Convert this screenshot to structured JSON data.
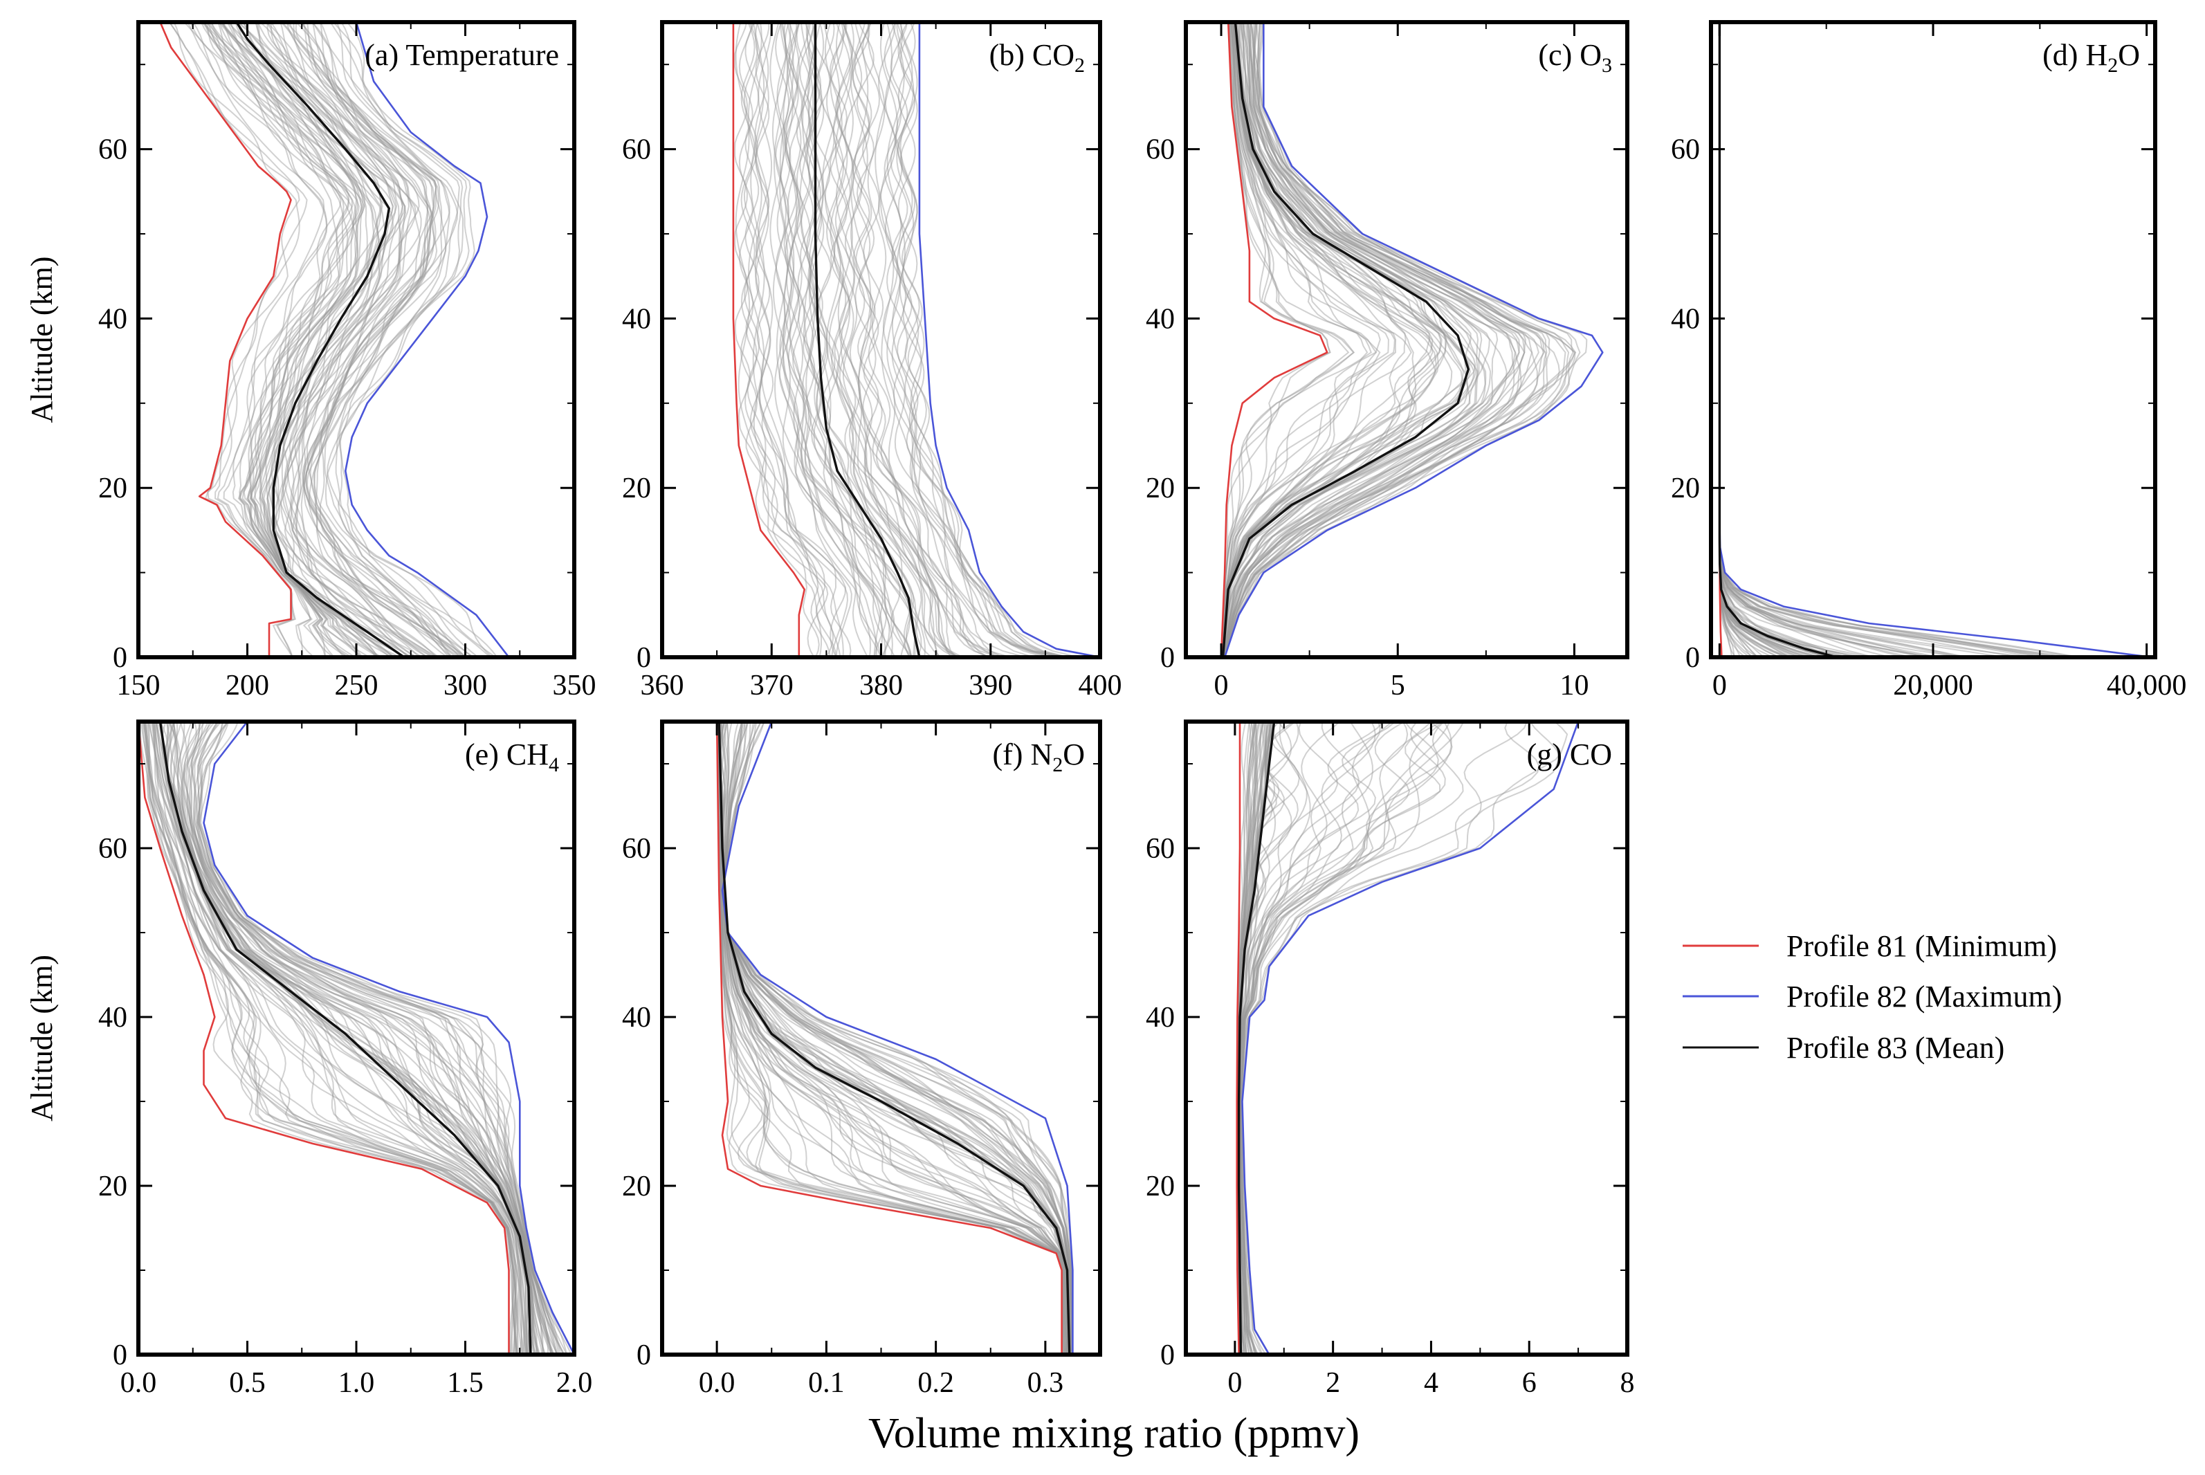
{
  "figure": {
    "xlabel": "Volume mixing ratio (ppmv)",
    "ylabel": "Altitude (km)"
  },
  "legend": {
    "items": [
      {
        "label": "Profile 81 (Minimum)",
        "color": "#e03c3c"
      },
      {
        "label": "Profile 82 (Maximum)",
        "color": "#4a55d8"
      },
      {
        "label": "Profile 83 (Mean)",
        "color": "#111111"
      }
    ]
  },
  "colors": {
    "ensemble": "#9a9a9a",
    "min": "#e03c3c",
    "max": "#4a55d8",
    "mean": "#111111"
  },
  "chart_data": [
    {
      "type": "line",
      "id": "temperature",
      "title": "(a) Temperature",
      "xlim": [
        150,
        350
      ],
      "ylim": [
        0,
        75
      ],
      "xticks": [
        150,
        200,
        250,
        300,
        350
      ],
      "xticklabels": [
        "150",
        "200",
        "250",
        "300",
        "350"
      ],
      "yticks": [
        0,
        20,
        40,
        60
      ],
      "yticklabels": [
        "0",
        "20",
        "40",
        "60"
      ],
      "ylabel": "Altitude (km)",
      "series": [
        {
          "name": "Profile 81 (Minimum)",
          "role": "min",
          "x": [
            210,
            210,
            220,
            220,
            207,
            190,
            186,
            178,
            183,
            188,
            190,
            192,
            200,
            212,
            215,
            220,
            218,
            214,
            205,
            185,
            165,
            160
          ],
          "y": [
            0,
            4,
            4.5,
            8,
            12,
            16,
            18,
            19,
            20,
            25,
            30,
            35,
            40,
            45,
            50,
            54,
            55,
            56,
            58,
            65,
            72,
            75
          ]
        },
        {
          "name": "Profile 82 (Maximum)",
          "role": "max",
          "x": [
            320,
            305,
            278,
            265,
            255,
            248,
            245,
            248,
            255,
            270,
            285,
            300,
            306,
            310,
            307,
            295,
            275,
            258,
            250
          ],
          "y": [
            0,
            5,
            10,
            12,
            15,
            18,
            22,
            26,
            30,
            35,
            40,
            45,
            48,
            52,
            56,
            58,
            62,
            68,
            75
          ]
        },
        {
          "name": "Profile 83 (Mean)",
          "role": "mean",
          "x": [
            272,
            255,
            232,
            218,
            212,
            212,
            215,
            222,
            232,
            243,
            255,
            263,
            265,
            258,
            245,
            228,
            210,
            200,
            195
          ],
          "y": [
            0,
            3,
            7,
            10,
            15,
            20,
            25,
            30,
            35,
            40,
            45,
            50,
            53,
            56,
            60,
            65,
            70,
            73,
            75
          ]
        }
      ]
    },
    {
      "type": "line",
      "id": "co2",
      "title": "(b) CO2",
      "title_text": "(b) CO",
      "title_sub": "2",
      "xlim": [
        360,
        400
      ],
      "ylim": [
        0,
        75
      ],
      "xticks": [
        360,
        370,
        380,
        390,
        400
      ],
      "xticklabels": [
        "360",
        "370",
        "380",
        "390",
        "400"
      ],
      "yticks": [
        0,
        20,
        40,
        60
      ],
      "yticklabels": [
        "0",
        "20",
        "40",
        "60"
      ],
      "series": [
        {
          "name": "Profile 81 (Minimum)",
          "role": "min",
          "x": [
            372.5,
            372.5,
            373,
            372,
            369,
            368,
            367,
            366.8,
            366.5,
            366.5
          ],
          "y": [
            0,
            5,
            8,
            10,
            15,
            20,
            25,
            30,
            40,
            75
          ]
        },
        {
          "name": "Profile 82 (Maximum)",
          "role": "max",
          "x": [
            400,
            396,
            393,
            391,
            389,
            388,
            386,
            385,
            384.5,
            384,
            383.5,
            383.5
          ],
          "y": [
            0,
            1,
            3,
            6,
            10,
            15,
            20,
            25,
            30,
            40,
            50,
            75
          ]
        },
        {
          "name": "Profile 83 (Mean)",
          "role": "mean",
          "x": [
            383.5,
            383,
            382.5,
            381.5,
            380,
            378,
            376,
            375,
            374.5,
            374.2,
            374,
            374
          ],
          "y": [
            0,
            3,
            7,
            10,
            14,
            18,
            22,
            27,
            33,
            40,
            50,
            75
          ]
        }
      ]
    },
    {
      "type": "line",
      "id": "o3",
      "title": "(c) O3",
      "title_text": "(c) O",
      "title_sub": "3",
      "xlim": [
        -1,
        11.5
      ],
      "ylim": [
        0,
        75
      ],
      "xticks": [
        0,
        5,
        10
      ],
      "xticklabels": [
        "0",
        "5",
        "10"
      ],
      "yticks": [
        0,
        20,
        40,
        60
      ],
      "yticklabels": [
        "0",
        "20",
        "40",
        "60"
      ],
      "series": [
        {
          "name": "Profile 81 (Minimum)",
          "role": "min",
          "x": [
            0,
            0.1,
            0.15,
            0.3,
            0.6,
            1.5,
            3.0,
            2.8,
            1.5,
            0.8,
            0.8,
            0.6,
            0.3,
            0.2
          ],
          "y": [
            0,
            10,
            18,
            25,
            30,
            33,
            36,
            38,
            40,
            42,
            48,
            55,
            65,
            75
          ]
        },
        {
          "name": "Profile 82 (Maximum)",
          "role": "max",
          "x": [
            0.1,
            0.5,
            1.2,
            3.0,
            5.5,
            7.5,
            9.0,
            10.2,
            10.8,
            10.5,
            9.0,
            6.5,
            4.0,
            2.0,
            1.2,
            1.2
          ],
          "y": [
            0,
            5,
            10,
            15,
            20,
            25,
            28,
            32,
            36,
            38,
            40,
            45,
            50,
            58,
            65,
            75
          ]
        },
        {
          "name": "Profile 83 (Mean)",
          "role": "mean",
          "x": [
            0.05,
            0.2,
            0.8,
            2.0,
            3.8,
            5.5,
            6.7,
            7.0,
            6.7,
            5.8,
            4.2,
            2.6,
            1.5,
            0.9,
            0.6,
            0.4
          ],
          "y": [
            0,
            8,
            14,
            18,
            22,
            26,
            30,
            34,
            38,
            42,
            46,
            50,
            55,
            60,
            66,
            75
          ]
        }
      ]
    },
    {
      "type": "line",
      "id": "h2o",
      "title": "(d) H2O",
      "title_text": "(d) H",
      "title_sub": "2",
      "title_tail": "O",
      "xlim": [
        -800,
        40800
      ],
      "ylim": [
        0,
        75
      ],
      "xticks": [
        0,
        20000,
        40000
      ],
      "xticklabels": [
        "0",
        "20,000",
        "40,000"
      ],
      "yticks": [
        0,
        20,
        40,
        60
      ],
      "yticklabels": [
        "0",
        "20",
        "40",
        "60"
      ],
      "series": [
        {
          "name": "Profile 81 (Minimum)",
          "role": "min",
          "x": [
            200,
            100,
            20,
            5,
            5,
            5
          ],
          "y": [
            0,
            3,
            8,
            14,
            30,
            75
          ]
        },
        {
          "name": "Profile 82 (Maximum)",
          "role": "max",
          "x": [
            40500,
            28000,
            14000,
            6000,
            2000,
            500,
            50,
            5,
            5
          ],
          "y": [
            0,
            2,
            4,
            6,
            8,
            10,
            13,
            16,
            75
          ]
        },
        {
          "name": "Profile 83 (Mean)",
          "role": "mean",
          "x": [
            11000,
            8000,
            4500,
            2000,
            700,
            150,
            20,
            5,
            5
          ],
          "y": [
            0,
            1,
            2.5,
            4,
            6,
            8,
            11,
            14,
            75
          ]
        }
      ]
    },
    {
      "type": "line",
      "id": "ch4",
      "title": "(e) CH4",
      "title_text": "(e) CH",
      "title_sub": "4",
      "xlim": [
        0,
        2.0
      ],
      "ylim": [
        0,
        75
      ],
      "xticks": [
        0,
        0.5,
        1.0,
        1.5,
        2.0
      ],
      "xticklabels": [
        "0.0",
        "0.5",
        "1.0",
        "1.5",
        "2.0"
      ],
      "yticks": [
        0,
        20,
        40,
        60
      ],
      "yticklabels": [
        "0",
        "20",
        "40",
        "60"
      ],
      "ylabel": "Altitude (km)",
      "series": [
        {
          "name": "Profile 81 (Minimum)",
          "role": "min",
          "x": [
            1.7,
            1.7,
            1.68,
            1.6,
            1.3,
            0.8,
            0.4,
            0.3,
            0.3,
            0.35,
            0.3,
            0.2,
            0.1,
            0.03,
            0.0
          ],
          "y": [
            0,
            10,
            15,
            18,
            22,
            25,
            28,
            32,
            36,
            40,
            45,
            52,
            60,
            66,
            75
          ]
        },
        {
          "name": "Profile 82 (Maximum)",
          "role": "max",
          "x": [
            2.0,
            1.9,
            1.82,
            1.78,
            1.75,
            1.75,
            1.7,
            1.6,
            1.2,
            0.8,
            0.5,
            0.35,
            0.3,
            0.35,
            0.5
          ],
          "y": [
            0,
            5,
            10,
            15,
            20,
            30,
            37,
            40,
            43,
            47,
            52,
            58,
            63,
            70,
            75
          ]
        },
        {
          "name": "Profile 83 (Mean)",
          "role": "mean",
          "x": [
            1.8,
            1.79,
            1.75,
            1.65,
            1.45,
            1.2,
            0.95,
            0.7,
            0.45,
            0.3,
            0.2,
            0.14,
            0.1
          ],
          "y": [
            0,
            8,
            14,
            20,
            26,
            32,
            38,
            43,
            48,
            55,
            62,
            68,
            75
          ]
        }
      ]
    },
    {
      "type": "line",
      "id": "n2o",
      "title": "(f) N2O",
      "title_text": "(f) N",
      "title_sub": "2",
      "title_tail": "O",
      "xlim": [
        -0.05,
        0.35
      ],
      "ylim": [
        0,
        75
      ],
      "xticks": [
        0,
        0.1,
        0.2,
        0.3
      ],
      "xticklabels": [
        "0.0",
        "0.1",
        "0.2",
        "0.3"
      ],
      "yticks": [
        0,
        20,
        40,
        60
      ],
      "yticklabels": [
        "0",
        "20",
        "40",
        "60"
      ],
      "series": [
        {
          "name": "Profile 81 (Minimum)",
          "role": "min",
          "x": [
            0.315,
            0.315,
            0.31,
            0.25,
            0.12,
            0.04,
            0.01,
            0.005,
            0.01,
            0.005,
            0.002,
            0.0
          ],
          "y": [
            0,
            10,
            12,
            15,
            18,
            20,
            22,
            26,
            30,
            40,
            55,
            75
          ]
        },
        {
          "name": "Profile 82 (Maximum)",
          "role": "max",
          "x": [
            0.325,
            0.325,
            0.32,
            0.3,
            0.2,
            0.1,
            0.04,
            0.01,
            0.005,
            0.02,
            0.05
          ],
          "y": [
            0,
            10,
            20,
            28,
            35,
            40,
            45,
            50,
            55,
            65,
            75
          ]
        },
        {
          "name": "Profile 83 (Mean)",
          "role": "mean",
          "x": [
            0.322,
            0.32,
            0.31,
            0.28,
            0.22,
            0.15,
            0.09,
            0.05,
            0.025,
            0.01,
            0.005,
            0.002
          ],
          "y": [
            0,
            10,
            15,
            20,
            25,
            30,
            34,
            38,
            43,
            50,
            60,
            75
          ]
        }
      ]
    },
    {
      "type": "line",
      "id": "co",
      "title": "(g) CO",
      "xlim": [
        -1,
        8
      ],
      "ylim": [
        0,
        75
      ],
      "xticks": [
        0,
        2,
        4,
        6,
        8
      ],
      "xticklabels": [
        "0",
        "2",
        "4",
        "6",
        "8"
      ],
      "yticks": [
        0,
        20,
        40,
        60
      ],
      "yticklabels": [
        "0",
        "20",
        "40",
        "60"
      ],
      "series": [
        {
          "name": "Profile 81 (Minimum)",
          "role": "min",
          "x": [
            0.08,
            0.05,
            0.04,
            0.04,
            0.05,
            0.08,
            0.1,
            0.1
          ],
          "y": [
            0,
            10,
            20,
            30,
            40,
            50,
            60,
            75
          ]
        },
        {
          "name": "Profile 82 (Maximum)",
          "role": "max",
          "x": [
            0.7,
            0.4,
            0.3,
            0.2,
            0.15,
            0.3,
            0.6,
            0.7,
            1.5,
            3.0,
            5.0,
            6.5,
            7.0
          ],
          "y": [
            0,
            3,
            10,
            20,
            30,
            40,
            42,
            46,
            52,
            56,
            60,
            67,
            75
          ]
        },
        {
          "name": "Profile 83 (Mean)",
          "role": "mean",
          "x": [
            0.12,
            0.1,
            0.08,
            0.08,
            0.1,
            0.2,
            0.4,
            0.6,
            0.8
          ],
          "y": [
            0,
            10,
            20,
            30,
            40,
            48,
            55,
            65,
            75
          ]
        }
      ]
    }
  ]
}
